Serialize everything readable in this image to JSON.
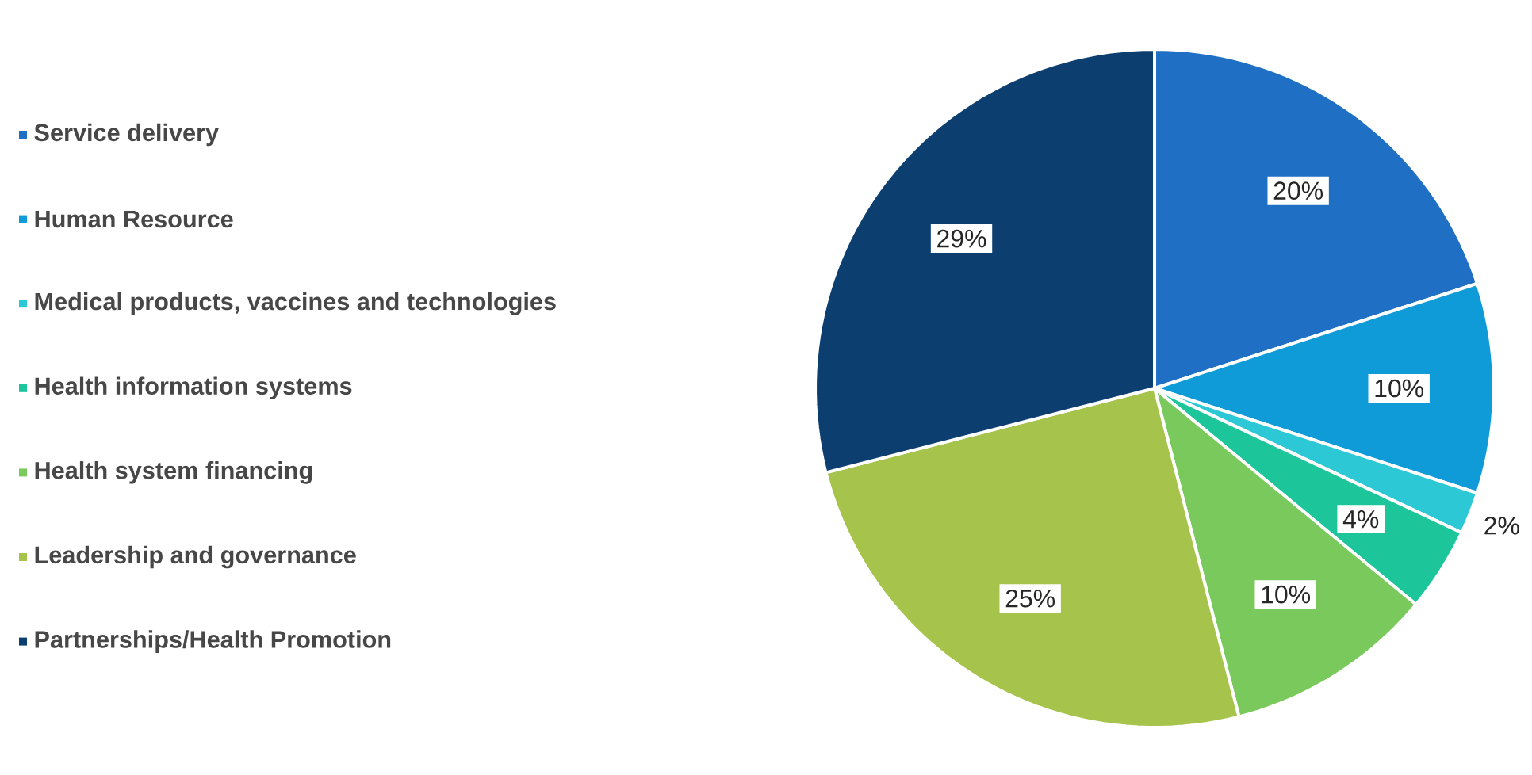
{
  "chart_data": {
    "type": "pie",
    "categories": [
      "Service delivery",
      "Human Resource",
      "Medical products, vaccines and technologies",
      "Health information systems",
      "Health system financing",
      "Leadership and governance",
      "Partnerships/Health Promotion"
    ],
    "values": [
      20,
      10,
      2,
      4,
      10,
      25,
      29
    ],
    "value_labels": [
      "20%",
      "10%",
      "2%",
      "4%",
      "10%",
      "25%",
      "29%"
    ],
    "colors": [
      "#1f6fc4",
      "#0f9ad8",
      "#2cc8d6",
      "#1dc59b",
      "#7ac95c",
      "#a6c34b",
      "#0c3f6f"
    ],
    "legend": "left"
  }
}
